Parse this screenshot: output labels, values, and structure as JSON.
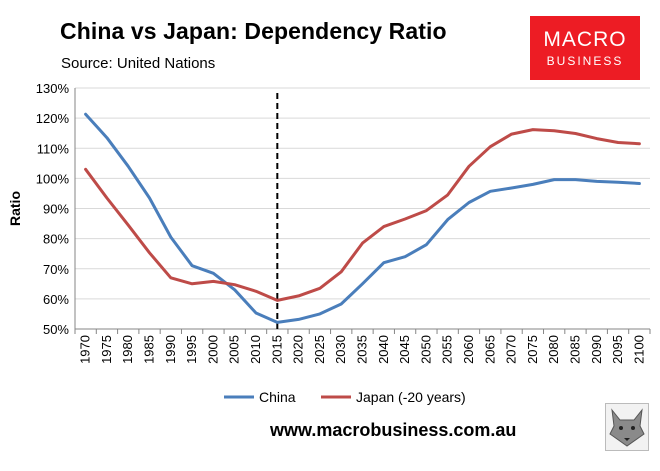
{
  "title": "China vs Japan: Dependency Ratio",
  "subtitle": "Source: United Nations",
  "logo": {
    "line1": "MACRO",
    "line2": "BUSINESS"
  },
  "footer_url": "www.macrobusiness.com.au",
  "colors": {
    "china": "#4a7ebb",
    "japan": "#be4b48",
    "grid": "#d9d9d9",
    "logo_bg": "#ed1c24"
  },
  "chart_data": {
    "type": "line",
    "ylabel": "Ratio",
    "xlabel": "",
    "ylim": [
      50,
      130
    ],
    "yticks": [
      "50%",
      "60%",
      "70%",
      "80%",
      "90%",
      "100%",
      "110%",
      "120%",
      "130%"
    ],
    "categories": [
      "1970",
      "1975",
      "1980",
      "1985",
      "1990",
      "1995",
      "2000",
      "2005",
      "2010",
      "2015",
      "2020",
      "2025",
      "2030",
      "2035",
      "2040",
      "2045",
      "2050",
      "2055",
      "2060",
      "2065",
      "2070",
      "2075",
      "2080",
      "2085",
      "2090",
      "2095",
      "2100"
    ],
    "series": [
      {
        "name": "China",
        "values": [
          121.3,
          113.5,
          104,
          93.5,
          80.5,
          71,
          68.5,
          63,
          55.3,
          52.2,
          53.2,
          55,
          58.3,
          65,
          72,
          74,
          78,
          86.3,
          92,
          95.7,
          96.8,
          98,
          99.6,
          99.6,
          99,
          98.7,
          98.3
        ]
      },
      {
        "name": "Japan (-20 years)",
        "values": [
          103,
          93.5,
          84.5,
          75.3,
          67,
          65,
          65.8,
          64.7,
          62.5,
          59.5,
          61,
          63.5,
          69,
          78.5,
          84,
          86.5,
          89.3,
          94.5,
          104,
          110.5,
          114.7,
          116.2,
          115.8,
          114.9,
          113.2,
          111.9,
          111.5
        ]
      }
    ],
    "vline_at": "2015",
    "grid": true,
    "legend_position": "bottom"
  }
}
